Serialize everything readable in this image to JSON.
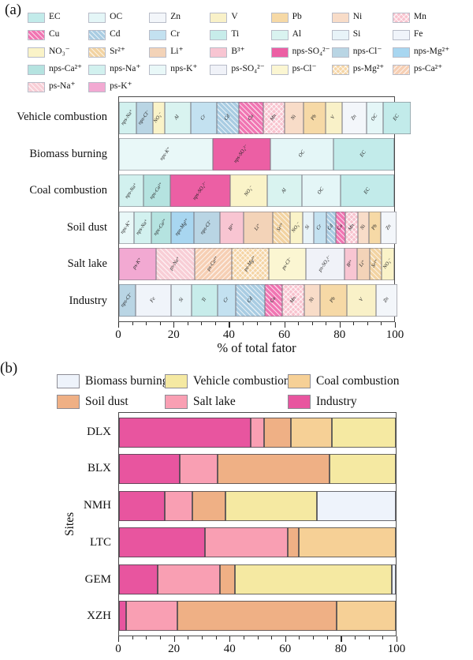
{
  "panel_a": {
    "label": "(a)",
    "legend": [
      {
        "name": "EC",
        "color": "#c2ebea",
        "pattern": "none"
      },
      {
        "name": "OC",
        "color": "#e4f6f7",
        "pattern": "none"
      },
      {
        "name": "Zn",
        "color": "#f3f6fa",
        "pattern": "none"
      },
      {
        "name": "V",
        "color": "#f9f1c8",
        "pattern": "none"
      },
      {
        "name": "Pb",
        "color": "#f6d9a6",
        "pattern": "none"
      },
      {
        "name": "Ni",
        "color": "#f8dcc8",
        "pattern": "none"
      },
      {
        "name": "Mn",
        "color": "#f8c2ce",
        "pattern": "cross"
      },
      {
        "name": "Cu",
        "color": "#f075b2",
        "pattern": "diag"
      },
      {
        "name": "Cd",
        "color": "#a9cce2",
        "pattern": "diag"
      },
      {
        "name": "Cr",
        "color": "#c3e1f0",
        "pattern": "none"
      },
      {
        "name": "Ti",
        "color": "#c7ecea",
        "pattern": "none"
      },
      {
        "name": "Al",
        "color": "#d9f3f0",
        "pattern": "none"
      },
      {
        "name": "Si",
        "color": "#e8f3f8",
        "pattern": "none"
      },
      {
        "name": "Fe",
        "color": "#f0f4fa",
        "pattern": "none"
      },
      {
        "name": "NO₃⁻",
        "color": "#faf3c8",
        "pattern": "none"
      },
      {
        "name": "Sr²⁺",
        "color": "#f2d3a2",
        "pattern": "diag"
      },
      {
        "name": "Li⁺",
        "color": "#f3d3b8",
        "pattern": "none"
      },
      {
        "name": "B³⁺",
        "color": "#f8c5d2",
        "pattern": "none"
      },
      {
        "name": "nps-SO₄²⁻",
        "color": "#ec5fa4",
        "pattern": "none"
      },
      {
        "name": "nps-Cl⁻",
        "color": "#b9d5e4",
        "pattern": "none"
      },
      {
        "name": "nps-Mg²⁺",
        "color": "#a8d6f0",
        "pattern": "none"
      },
      {
        "name": "nps-Ca²⁺",
        "color": "#b5e3e0",
        "pattern": "none"
      },
      {
        "name": "nps-Na⁺",
        "color": "#d2f1ef",
        "pattern": "none"
      },
      {
        "name": "nps-K⁺",
        "color": "#e9f8f8",
        "pattern": "none"
      },
      {
        "name": "ps-SO₄²⁻",
        "color": "#f0f2f8",
        "pattern": "none"
      },
      {
        "name": "ps-Cl⁻",
        "color": "#fbf6d2",
        "pattern": "none"
      },
      {
        "name": "ps-Mg²⁺",
        "color": "#f5d5a5",
        "pattern": "cross"
      },
      {
        "name": "ps-Ca²⁺",
        "color": "#f6cfb4",
        "pattern": "diag2"
      },
      {
        "name": "ps-Na⁺",
        "color": "#f8ced6",
        "pattern": "diag"
      },
      {
        "name": "ps-K⁺",
        "color": "#f2a9d2",
        "pattern": "none"
      }
    ]
  },
  "panel_b": {
    "label": "(b)",
    "legend": [
      {
        "name": "Biomass burning",
        "color": "#eef3fb"
      },
      {
        "name": "Vehicle combustion",
        "color": "#f5e9a2"
      },
      {
        "name": "Coal combustion",
        "color": "#f6d096"
      },
      {
        "name": "Soil dust",
        "color": "#efb085"
      },
      {
        "name": "Salt lake",
        "color": "#f99fb3"
      },
      {
        "name": "Industry",
        "color": "#e8559f"
      }
    ]
  },
  "chart_data": [
    {
      "type": "bar",
      "stacked": true,
      "orientation": "horizontal",
      "xlabel": "% of total fator",
      "xlim": [
        0,
        100
      ],
      "xticks": [
        0,
        20,
        40,
        60,
        80,
        100
      ],
      "minor_tick_step": 5,
      "categories": [
        "Vehicle combustion",
        "Biomass burning",
        "Coal combustion",
        "Soil dust",
        "Salt lake",
        "Industry"
      ],
      "rows": [
        {
          "category": "Vehicle combustion",
          "segments": [
            [
              "nps-Na⁺",
              3.5
            ],
            [
              "nps-Cl⁻",
              3.5
            ],
            [
              "NO₃⁻",
              3.5
            ],
            [
              "Al",
              9.5
            ],
            [
              "Cr",
              9.5
            ],
            [
              "Cd",
              8
            ],
            [
              "Cu",
              9
            ],
            [
              "Mn",
              7.5
            ],
            [
              "Ni",
              7
            ],
            [
              "Pb",
              8
            ],
            [
              "V",
              6
            ],
            [
              "Zn",
              9
            ],
            [
              "OC",
              6
            ],
            [
              "EC",
              10
            ]
          ]
        },
        {
          "category": "Biomass burning",
          "segments": [
            [
              "nps-K⁺",
              34
            ],
            [
              "nps-SO₄²⁻",
              21
            ],
            [
              "OC",
              23
            ],
            [
              "EC",
              22
            ]
          ]
        },
        {
          "category": "Coal combustion",
          "segments": [
            [
              "nps-Na⁺",
              9
            ],
            [
              "nps-Ca²⁺",
              9.5
            ],
            [
              "nps-SO₄²⁻",
              22
            ],
            [
              "NO₃⁻",
              13.5
            ],
            [
              "Al",
              12.5
            ],
            [
              "OC",
              14
            ],
            [
              "EC",
              19.5
            ]
          ]
        },
        {
          "category": "Soil dust",
          "segments": [
            [
              "nps-K⁺",
              5.5
            ],
            [
              "nps-Na⁺",
              6
            ],
            [
              "nps-Ca²⁺",
              6.5
            ],
            [
              "nps-Mg²⁺",
              8.5
            ],
            [
              "nps-Cl⁻",
              9.5
            ],
            [
              "B³⁺",
              8.5
            ],
            [
              "Li⁺",
              10.5
            ],
            [
              "Sr²⁺",
              6.5
            ],
            [
              "NO₃⁻",
              4.5
            ],
            [
              "Si",
              4
            ],
            [
              "Cr",
              4.5
            ],
            [
              "Cd",
              3.5
            ],
            [
              "Cu",
              3.5
            ],
            [
              "Mn",
              4.5
            ],
            [
              "Ni",
              4
            ],
            [
              "Pb",
              4.5
            ],
            [
              "Zn",
              5.5
            ]
          ]
        },
        {
          "category": "Salt lake",
          "segments": [
            [
              "ps-K⁺",
              13.5
            ],
            [
              "ps-Na⁺",
              14
            ],
            [
              "ps-Ca²⁺",
              13.5
            ],
            [
              "ps-Mg²⁺",
              13.5
            ],
            [
              "ps-Cl⁻",
              13.5
            ],
            [
              "ps-SO₄²⁻",
              14
            ],
            [
              "B³⁺",
              4.5
            ],
            [
              "Li⁺",
              4.5
            ],
            [
              "Sr²⁺",
              4.5
            ],
            [
              "NO₃⁻",
              4.5
            ]
          ]
        },
        {
          "category": "Industry",
          "segments": [
            [
              "nps-Cl⁻",
              4.7
            ],
            [
              "Fe",
              13
            ],
            [
              "Si",
              7.5
            ],
            [
              "Ti",
              9.5
            ],
            [
              "Cr",
              6.5
            ],
            [
              "Cd",
              10.5
            ],
            [
              "Cu",
              6.5
            ],
            [
              "Mn",
              8
            ],
            [
              "Ni",
              5.5
            ],
            [
              "Pb",
              10
            ],
            [
              "V",
              10.5
            ],
            [
              "Zn",
              7.8
            ]
          ]
        }
      ]
    },
    {
      "type": "bar",
      "stacked": true,
      "orientation": "horizontal",
      "ylabel": "Sites",
      "xlim": [
        0,
        100
      ],
      "xticks": [
        0,
        20,
        40,
        60,
        80,
        100
      ],
      "minor_tick_step": 5,
      "categories": [
        "DLX",
        "BLX",
        "NMH",
        "LTC",
        "GEM",
        "XZH"
      ],
      "series": [
        {
          "name": "Industry",
          "values": [
            47.5,
            22,
            16.5,
            31,
            14,
            2.5
          ]
        },
        {
          "name": "Salt lake",
          "values": [
            5,
            13.5,
            10,
            30,
            22.5,
            18.5
          ]
        },
        {
          "name": "Soil dust",
          "values": [
            9.5,
            40.5,
            12,
            4,
            5.5,
            57.5
          ]
        },
        {
          "name": "Coal combustion",
          "values": [
            15,
            0,
            0,
            35,
            0,
            21.5
          ]
        },
        {
          "name": "Vehicle combustion",
          "values": [
            23,
            24,
            33,
            0,
            56.5,
            0
          ]
        },
        {
          "name": "Biomass burning",
          "values": [
            0,
            0,
            28.5,
            0,
            1.5,
            0
          ]
        }
      ]
    }
  ]
}
